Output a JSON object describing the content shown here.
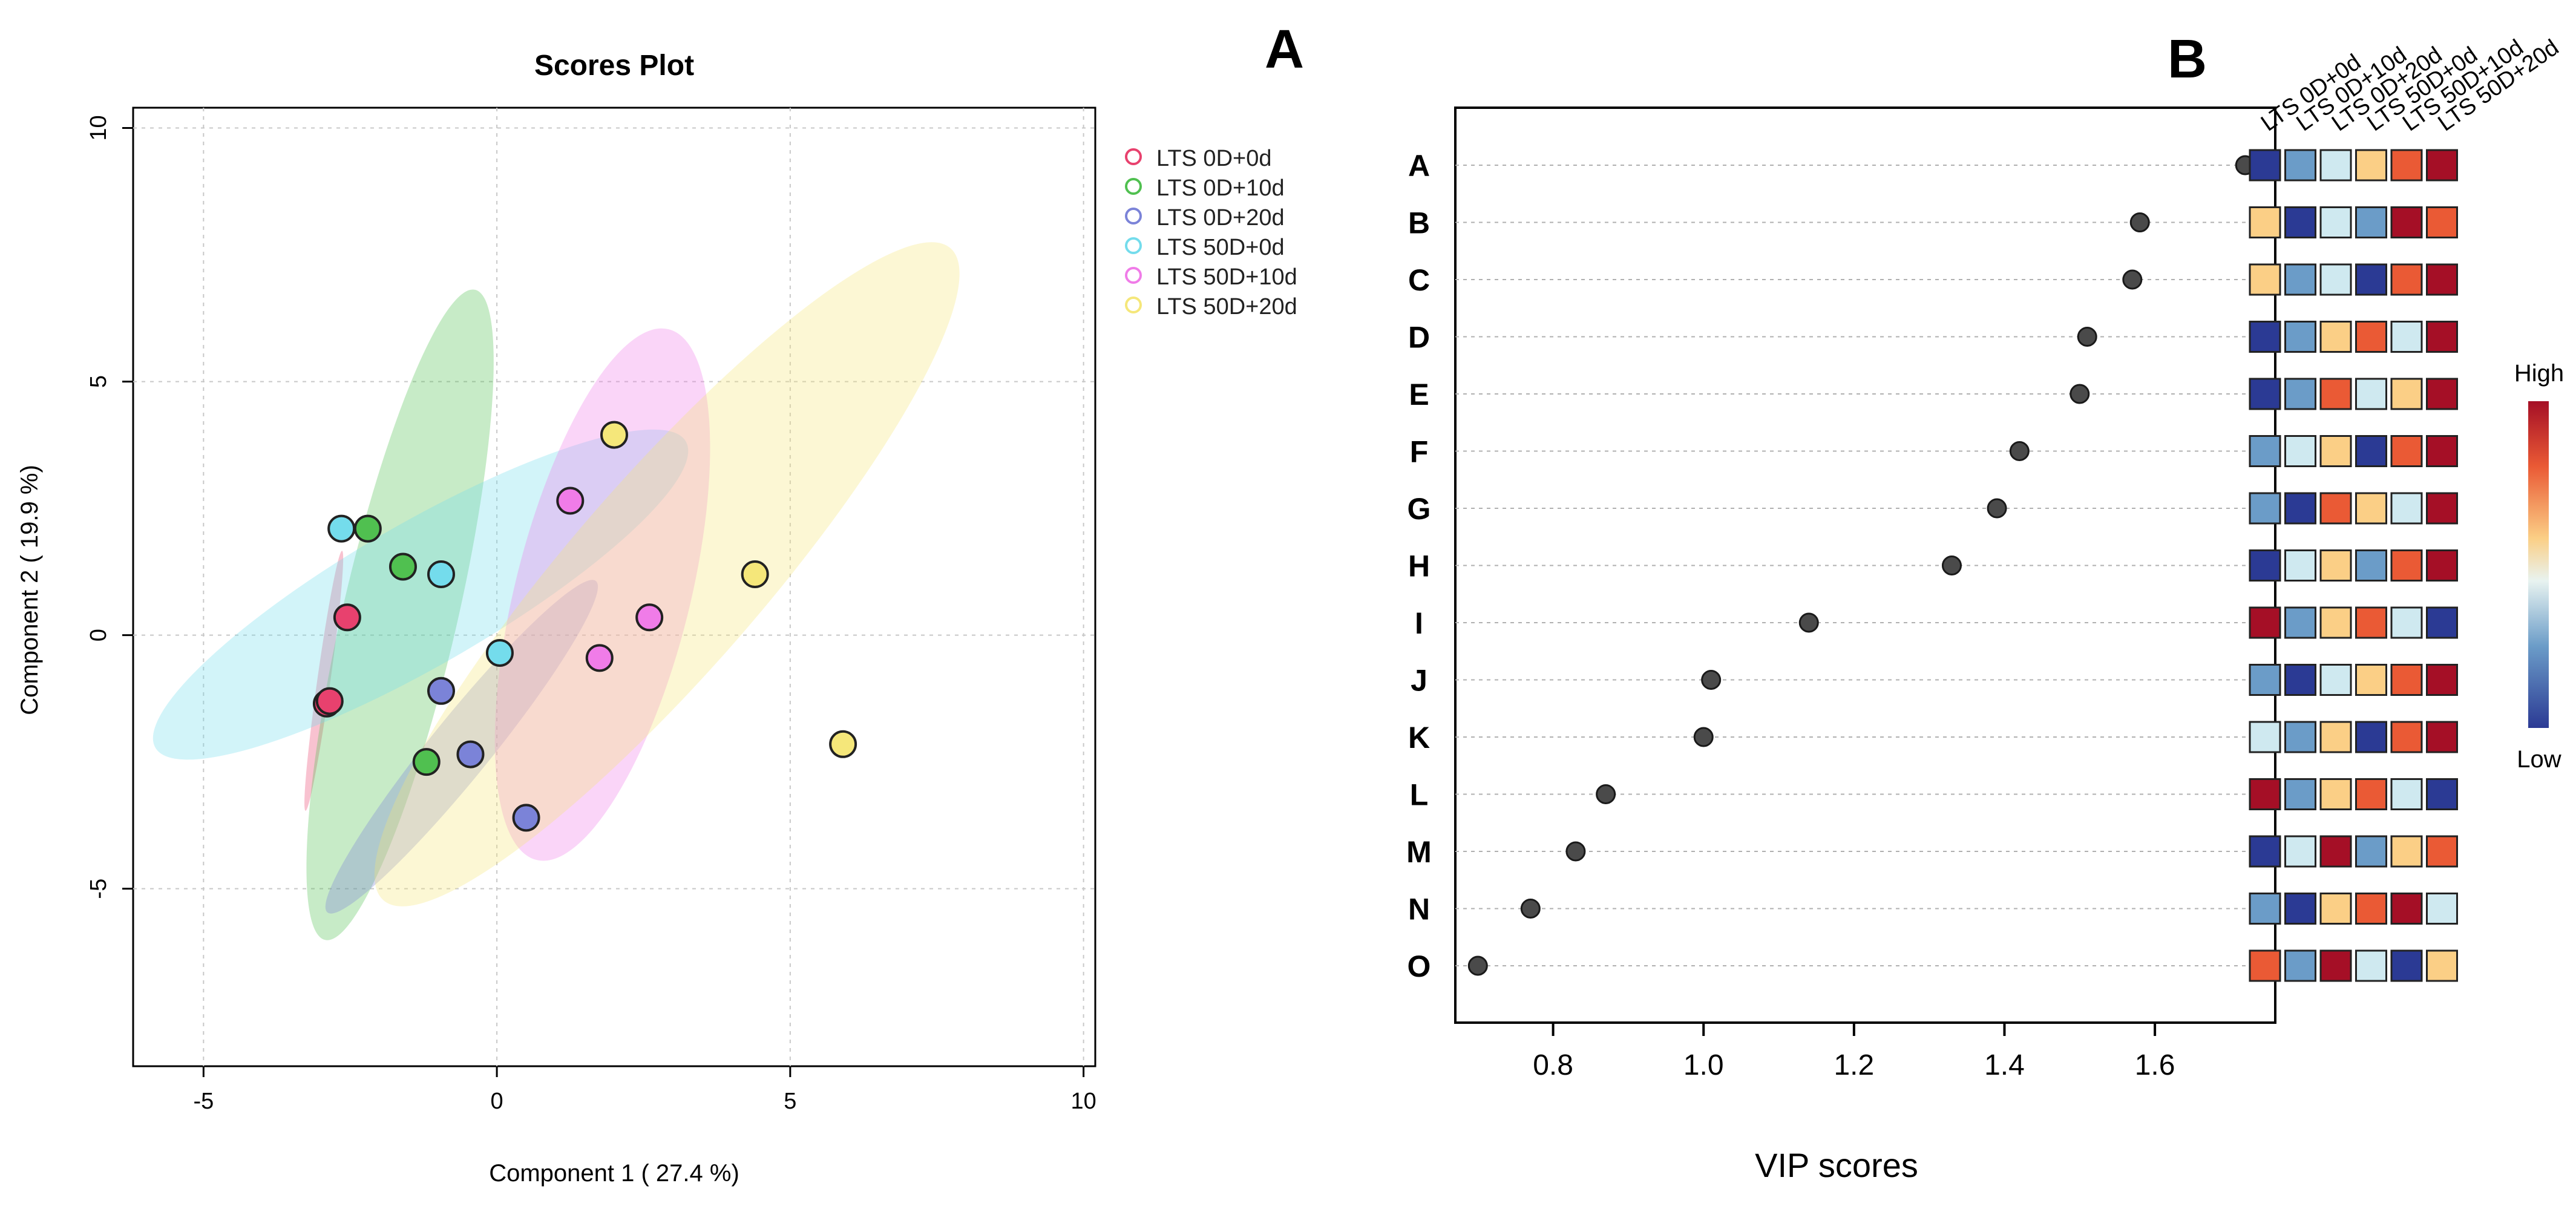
{
  "chart_data": [
    {
      "panel": "A",
      "type": "scatter",
      "title": "Scores Plot",
      "xlabel": "Component 1 ( 27.4 %)",
      "ylabel": "Component 2 ( 19.9 %)",
      "xlim": [
        -6.2,
        10.2
      ],
      "ylim": [
        -8.5,
        10.4
      ],
      "xticks": [
        "-5",
        "0",
        "5",
        "10"
      ],
      "yticks": [
        "-5",
        "0",
        "5",
        "10"
      ],
      "grid": true,
      "legend_position": "top-right",
      "series": [
        {
          "name": "LTS 0D+0d",
          "color": "#e8416e",
          "points": [
            [
              -2.9,
              -1.35
            ],
            [
              -2.85,
              -1.3
            ],
            [
              -2.55,
              0.35
            ]
          ],
          "ellipse": {
            "cx": -2.95,
            "cy": -0.9,
            "rx": 2.4,
            "ry": 0.12,
            "angle": 82
          }
        },
        {
          "name": "LTS 0D+10d",
          "color": "#50c050",
          "points": [
            [
              -2.2,
              2.1
            ],
            [
              -1.6,
              1.35
            ],
            [
              -1.2,
              -2.5
            ]
          ],
          "ellipse": {
            "cx": -1.65,
            "cy": 0.4,
            "rx": 6.1,
            "ry": 1.05,
            "angle": 77
          }
        },
        {
          "name": "LTS 0D+20d",
          "color": "#7b83d8",
          "points": [
            [
              -0.95,
              -1.1
            ],
            [
              -0.45,
              -2.35
            ],
            [
              0.5,
              -3.6
            ]
          ],
          "ellipse": {
            "cx": -0.6,
            "cy": -2.2,
            "rx": 3.9,
            "ry": 0.55,
            "angle": 51
          }
        },
        {
          "name": "LTS 50D+0d",
          "color": "#74dcec",
          "points": [
            [
              -2.65,
              2.1
            ],
            [
              -0.95,
              1.2
            ],
            [
              0.05,
              -0.35
            ]
          ],
          "ellipse": {
            "cx": -1.3,
            "cy": 0.8,
            "rx": 5.6,
            "ry": 1.3,
            "angle": 30
          }
        },
        {
          "name": "LTS 50D+10d",
          "color": "#f07ce8",
          "points": [
            [
              1.25,
              2.65
            ],
            [
              1.75,
              -0.45
            ],
            [
              2.6,
              0.35
            ]
          ],
          "ellipse": {
            "cx": 1.8,
            "cy": 0.8,
            "rx": 5.0,
            "ry": 1.6,
            "angle": 76
          }
        },
        {
          "name": "LTS 50D+20d",
          "color": "#f5e77a",
          "points": [
            [
              2.0,
              3.95
            ],
            [
              4.4,
              1.2
            ],
            [
              5.9,
              -2.15
            ]
          ],
          "ellipse": {
            "cx": 2.9,
            "cy": 1.2,
            "rx": 7.9,
            "ry": 1.75,
            "angle": 49
          }
        }
      ]
    },
    {
      "panel": "B",
      "type": "scatter",
      "xlabel": "VIP scores",
      "xlim": [
        0.67,
        1.76
      ],
      "xticks": [
        "0.8",
        "1.0",
        "1.2",
        "1.4",
        "1.6"
      ],
      "grid": true,
      "categories": [
        "A",
        "B",
        "C",
        "D",
        "E",
        "F",
        "G",
        "H",
        "I",
        "J",
        "K",
        "L",
        "M",
        "N",
        "O"
      ],
      "values": [
        1.72,
        1.58,
        1.57,
        1.51,
        1.5,
        1.42,
        1.39,
        1.33,
        1.14,
        1.01,
        1.0,
        0.87,
        0.83,
        0.77,
        0.7
      ],
      "heatmap": {
        "columns": [
          "LTS 0D+0d",
          "LTS 0D+10d",
          "LTS 0D+20d",
          "LTS 50D+0d",
          "LTS 50D+10d",
          "LTS 50D+20d"
        ],
        "levels": [
          [
            0,
            1,
            2,
            3,
            4,
            5
          ],
          [
            3,
            0,
            2,
            1,
            5,
            4
          ],
          [
            3,
            1,
            2,
            0,
            4,
            5
          ],
          [
            0,
            1,
            3,
            4,
            2,
            5
          ],
          [
            0,
            1,
            4,
            2,
            3,
            5
          ],
          [
            1,
            2,
            3,
            0,
            4,
            5
          ],
          [
            1,
            0,
            4,
            3,
            2,
            5
          ],
          [
            0,
            2,
            3,
            1,
            4,
            5
          ],
          [
            5,
            1,
            3,
            4,
            2,
            0
          ],
          [
            1,
            0,
            2,
            3,
            4,
            5
          ],
          [
            2,
            1,
            3,
            0,
            4,
            5
          ],
          [
            5,
            1,
            3,
            4,
            2,
            0
          ],
          [
            0,
            2,
            5,
            1,
            3,
            4
          ],
          [
            1,
            0,
            3,
            4,
            5,
            2
          ],
          [
            4,
            1,
            5,
            2,
            0,
            3
          ]
        ],
        "palette": [
          "#2b3a94",
          "#6b9cc8",
          "#cfe9f0",
          "#fbcf86",
          "#ea5a35",
          "#a50f26"
        ],
        "scale_high": "High",
        "scale_low": "Low"
      }
    }
  ],
  "panel_labels": {
    "a": "A",
    "b": "B"
  }
}
